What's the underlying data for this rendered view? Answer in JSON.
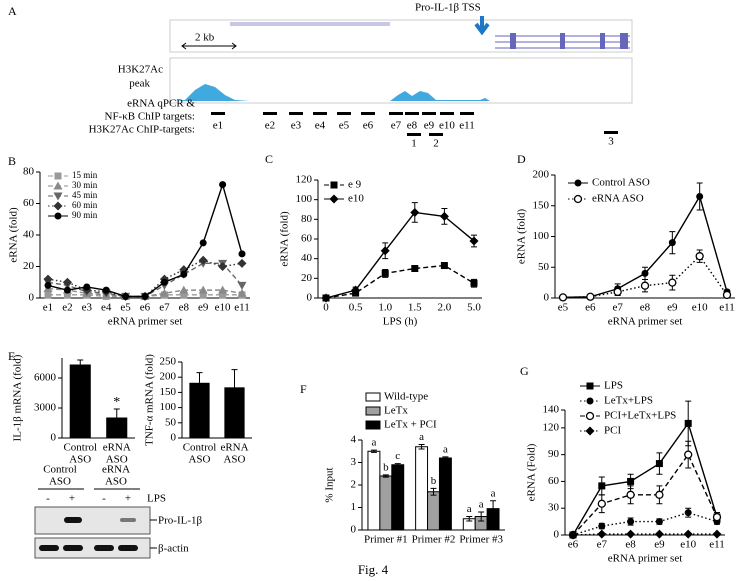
{
  "panel_a": {
    "panel": "A",
    "tss_label": "Pro-IL-1β TSS",
    "scale_label": "2 kb",
    "track_label": [
      "H3K27Ac",
      "peak"
    ],
    "targets_label": [
      "eRNA qPCR &",
      "NF-κB ChIP targets:"
    ],
    "h3k27ac_targets_label": "H3K27Ac ChIP-targets:",
    "erna_targets": [
      "e1",
      "e2",
      "e3",
      "e4",
      "e5",
      "e6",
      "e7",
      "e8",
      "e9",
      "e10",
      "e11"
    ],
    "h3k27ac_targets": [
      "1",
      "2",
      "3"
    ]
  },
  "blot": {
    "groups": [
      [
        "Control",
        "ASO"
      ],
      [
        "eRNA",
        "ASO"
      ]
    ],
    "lanes": [
      "-",
      "+",
      "-",
      "+"
    ],
    "treatment": "LPS",
    "bands": [
      "Pro-IL-1β",
      "β-actin"
    ]
  },
  "chart_data": [
    {
      "panel": "B",
      "type": "line",
      "y_label": "eRNA (fold)",
      "x_label": "eRNA primer set",
      "categories": [
        "e1",
        "e2",
        "e3",
        "e4",
        "e5",
        "e6",
        "e7",
        "e8",
        "e9",
        "e10",
        "e11"
      ],
      "ylim": [
        0,
        80
      ],
      "yticks": [
        0,
        20,
        40,
        60,
        80
      ],
      "legend": "top-left",
      "series": [
        {
          "name": "15 min",
          "color": "#9a9a9a",
          "marker": "square",
          "dash": "dashed",
          "values": [
            2,
            2,
            2,
            1,
            1,
            1,
            2,
            2,
            2,
            2,
            2
          ]
        },
        {
          "name": "30 min",
          "color": "#8a8a8a",
          "marker": "triangle",
          "dash": "dashed",
          "values": [
            6,
            5,
            3,
            2,
            1,
            1,
            3,
            5,
            5,
            5,
            3
          ]
        },
        {
          "name": "45 min",
          "color": "#666666",
          "marker": "triangle-down",
          "dash": "dashed",
          "values": [
            10,
            8,
            4,
            3,
            1,
            1,
            8,
            15,
            22,
            22,
            8
          ]
        },
        {
          "name": "60 min",
          "color": "#333333",
          "marker": "diamond",
          "dash": "dotted",
          "values": [
            12,
            10,
            5,
            4,
            1,
            1,
            12,
            18,
            24,
            20,
            22
          ]
        },
        {
          "name": "90 min",
          "color": "#000000",
          "marker": "circle",
          "dash": "solid",
          "values": [
            8,
            5,
            7,
            5,
            1,
            1,
            10,
            15,
            35,
            72,
            28
          ]
        }
      ]
    },
    {
      "panel": "C",
      "type": "line",
      "y_label": "eRNA (fold)",
      "x_label": "LPS (h)",
      "categories": [
        "0",
        "0.5",
        "1.0",
        "1.5",
        "2.0",
        "5.0"
      ],
      "ylim": [
        0,
        120
      ],
      "yticks": [
        0,
        20,
        40,
        60,
        80,
        100,
        120
      ],
      "legend": "top-left",
      "series": [
        {
          "name": "e 9",
          "color": "#000000",
          "marker": "square",
          "dash": "dashed",
          "values": [
            0,
            5,
            25,
            30,
            33,
            15
          ],
          "errors": [
            0,
            2,
            4,
            3,
            3,
            4
          ]
        },
        {
          "name": "e10",
          "color": "#000000",
          "marker": "diamond",
          "dash": "solid",
          "values": [
            0,
            8,
            48,
            87,
            83,
            58
          ],
          "errors": [
            0,
            3,
            8,
            10,
            8,
            6
          ]
        }
      ]
    },
    {
      "panel": "D",
      "type": "line",
      "y_label": "eRNA (fold)",
      "x_label": "eRNA primer set",
      "categories": [
        "e5",
        "e6",
        "e7",
        "e8",
        "e9",
        "e10",
        "e11"
      ],
      "ylim": [
        0,
        200
      ],
      "yticks": [
        0,
        50,
        100,
        150,
        200
      ],
      "legend": "top-left",
      "series": [
        {
          "name": "Control ASO",
          "color": "#000000",
          "marker": "circle",
          "dash": "solid",
          "values": [
            1,
            2,
            15,
            40,
            90,
            165,
            10
          ],
          "errors": [
            0,
            0,
            8,
            10,
            18,
            22,
            3
          ]
        },
        {
          "name": "eRNA ASO",
          "color": "#000000",
          "marker": "circle-open",
          "dash": "dotted",
          "values": [
            1,
            2,
            10,
            20,
            25,
            68,
            5
          ],
          "errors": [
            0,
            0,
            6,
            10,
            12,
            10,
            3
          ]
        }
      ]
    },
    {
      "panel": "E",
      "type": "bar",
      "y_label": "IL-1β mRNA (fold)",
      "categories": [
        [
          "Control",
          "ASO"
        ],
        [
          "eRNA",
          "ASO"
        ]
      ],
      "values": [
        7300,
        2000
      ],
      "errors": [
        500,
        900
      ],
      "color": "#000000",
      "ylim": [
        0,
        8000
      ],
      "yticks": [
        0,
        3000,
        6000
      ],
      "annotations": [
        {
          "category": 1,
          "text": "*"
        }
      ]
    },
    {
      "type": "bar",
      "y_label": "TNF-α mRNA (fold)",
      "categories": [
        [
          "Control",
          "ASO"
        ],
        [
          "eRNA",
          "ASO"
        ]
      ],
      "values": [
        180,
        165
      ],
      "errors": [
        35,
        60
      ],
      "color": "#000000",
      "ylim": [
        0,
        250
      ],
      "yticks": [
        0,
        50,
        100,
        150,
        200,
        250
      ]
    },
    {
      "panel": "F",
      "type": "bar",
      "y_label": "% Input",
      "categories": [
        "Primer #1",
        "Primer #2",
        "Primer #3"
      ],
      "ylim": [
        0,
        4
      ],
      "yticks": [
        0,
        1,
        2,
        3,
        4
      ],
      "legend": "top-left",
      "series": [
        {
          "name": "Wild-type",
          "color": "#ffffff",
          "values": [
            3.5,
            3.7,
            0.5
          ],
          "errors": [
            0.05,
            0.1,
            0.1
          ],
          "letters": [
            "a",
            "a",
            "a"
          ]
        },
        {
          "name": "LeTx",
          "color": "#a0a0a0",
          "values": [
            2.4,
            1.7,
            0.6
          ],
          "errors": [
            0.05,
            0.15,
            0.2
          ],
          "letters": [
            "b",
            "b",
            "a"
          ]
        },
        {
          "name": "LeTx + PCI",
          "color": "#000000",
          "values": [
            2.9,
            3.2,
            0.95
          ],
          "errors": [
            0.05,
            0.05,
            0.35
          ],
          "letters": [
            "c",
            "a",
            "a"
          ]
        }
      ]
    },
    {
      "panel": "G",
      "type": "line",
      "y_label": "eRNA (Fold)",
      "x_label": "eRNA primer set",
      "categories": [
        "e6",
        "e7",
        "e8",
        "e9",
        "e10",
        "e11"
      ],
      "ylim": [
        0,
        140
      ],
      "yticks": [
        0,
        30,
        60,
        90,
        120,
        140
      ],
      "legend": "top-left",
      "series": [
        {
          "name": "LPS",
          "color": "#000000",
          "marker": "square",
          "dash": "solid",
          "values": [
            0,
            55,
            60,
            80,
            125,
            20
          ],
          "errors": [
            0,
            10,
            8,
            12,
            25,
            5
          ]
        },
        {
          "name": "LeTx+LPS",
          "color": "#000000",
          "marker": "circle",
          "dash": "dotted",
          "values": [
            0,
            10,
            15,
            15,
            25,
            15
          ],
          "errors": [
            0,
            3,
            4,
            3,
            5,
            3
          ]
        },
        {
          "name": "PCI+LeTx+LPS",
          "color": "#000000",
          "marker": "circle-open",
          "dash": "dashed",
          "values": [
            0,
            35,
            45,
            45,
            90,
            20
          ],
          "errors": [
            0,
            10,
            10,
            10,
            15,
            5
          ]
        },
        {
          "name": "PCI",
          "color": "#000000",
          "marker": "diamond",
          "dash": "dotted",
          "values": [
            0,
            1,
            1,
            1,
            1,
            1
          ]
        }
      ]
    }
  ],
  "caption": "Fig. 4"
}
